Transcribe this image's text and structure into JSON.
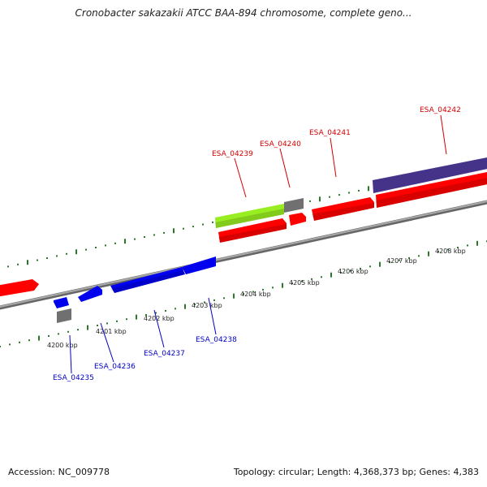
{
  "title": "Cronobacter sakazakii ATCC BAA-894 chromosome, complete geno...",
  "footer": {
    "accession": "Accession: NC_009778",
    "topology": "Topology: circular; Length: 4,368,373 bp; Genes: 4,383"
  },
  "colors": {
    "backbone": "#888888",
    "tick": "#2a7a2a",
    "forward_label": "#d40000",
    "reverse_label": "#0000c0",
    "red_gene": "#ff0000",
    "blue_gene": "#0000ee",
    "grey_gene": "#707070",
    "green_gene": "#99ee22",
    "purple_gene": "#443388"
  },
  "kbp_labels": [
    "4200 kbp",
    "4201 kbp",
    "4202 kbp",
    "4203 kbp",
    "4204 kbp",
    "4205 kbp",
    "4206 kbp",
    "4207 kbp",
    "4208 kbp"
  ],
  "forward_labels": [
    "ESA_04239",
    "ESA_04240",
    "ESA_04241",
    "ESA_04242"
  ],
  "reverse_labels": [
    "ESA_04235",
    "ESA_04236",
    "ESA_04237",
    "ESA_04238"
  ]
}
